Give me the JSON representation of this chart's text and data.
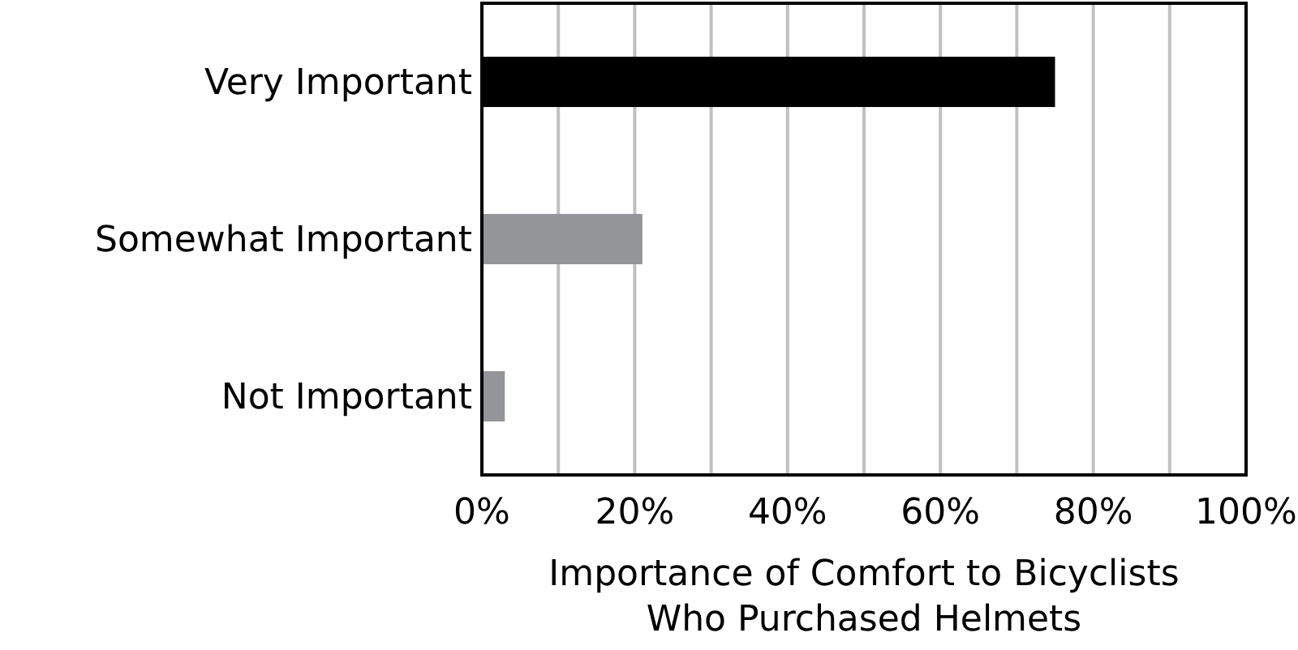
{
  "chart_data": {
    "type": "bar",
    "orientation": "horizontal",
    "xlabel": "Importance of Comfort to Bicyclists\nWho Purchased Helmets",
    "categories": [
      "Very Important",
      "Somewhat Important",
      "Not Important"
    ],
    "values": [
      75,
      21,
      3
    ],
    "colors": [
      "#000000",
      "#939598",
      "#939598"
    ],
    "xlim": [
      0,
      100
    ],
    "xticks": [
      {
        "value": 0,
        "label": "0%"
      },
      {
        "value": 10,
        "label": null
      },
      {
        "value": 20,
        "label": "20%"
      },
      {
        "value": 30,
        "label": null
      },
      {
        "value": 40,
        "label": "40%"
      },
      {
        "value": 50,
        "label": null
      },
      {
        "value": 60,
        "label": "60%"
      },
      {
        "value": 70,
        "label": null
      },
      {
        "value": 80,
        "label": "80%"
      },
      {
        "value": 90,
        "label": null
      },
      {
        "value": 100,
        "label": "100%"
      }
    ],
    "grid": "x"
  }
}
